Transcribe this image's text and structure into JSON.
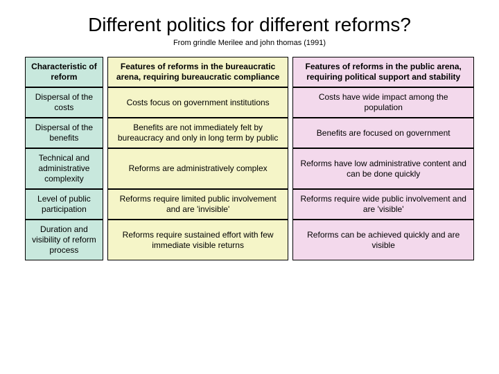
{
  "title": "Different politics for different reforms?",
  "subtitle": "From grindle Merilee and john thomas (1991)",
  "columns": {
    "col0": {
      "bg": "#c8e8dd"
    },
    "col1": {
      "bg": "#f5f5c8"
    },
    "col2": {
      "bg": "#f3d9ec"
    }
  },
  "header": {
    "c0": "Characteristic of reform",
    "c1": "Features of reforms in the bureaucratic arena, requiring bureaucratic compliance",
    "c2": "Features of reforms in the public arena, requiring political support and stability"
  },
  "rows": [
    {
      "c0": "Dispersal of the costs",
      "c1": "Costs focus on government institutions",
      "c2": "Costs have wide impact among the population"
    },
    {
      "c0": "Dispersal of the benefits",
      "c1": "Benefits are not immediately felt by bureaucracy and only in long term by public",
      "c2": "Benefits are focused on government"
    },
    {
      "c0": "Technical and administrative complexity",
      "c1": "Reforms are administratively complex",
      "c2": "Reforms have low administrative content and can be done quickly"
    },
    {
      "c0": "Level of public participation",
      "c1": "Reforms require limited public involvement and are 'invisible'",
      "c2": "Reforms require wide public involvement and are 'visible'"
    },
    {
      "c0": "Duration and visibility of reform process",
      "c1": "Reforms require sustained effort with few immediate visible returns",
      "c2": "Reforms can be achieved quickly and are visible"
    }
  ]
}
